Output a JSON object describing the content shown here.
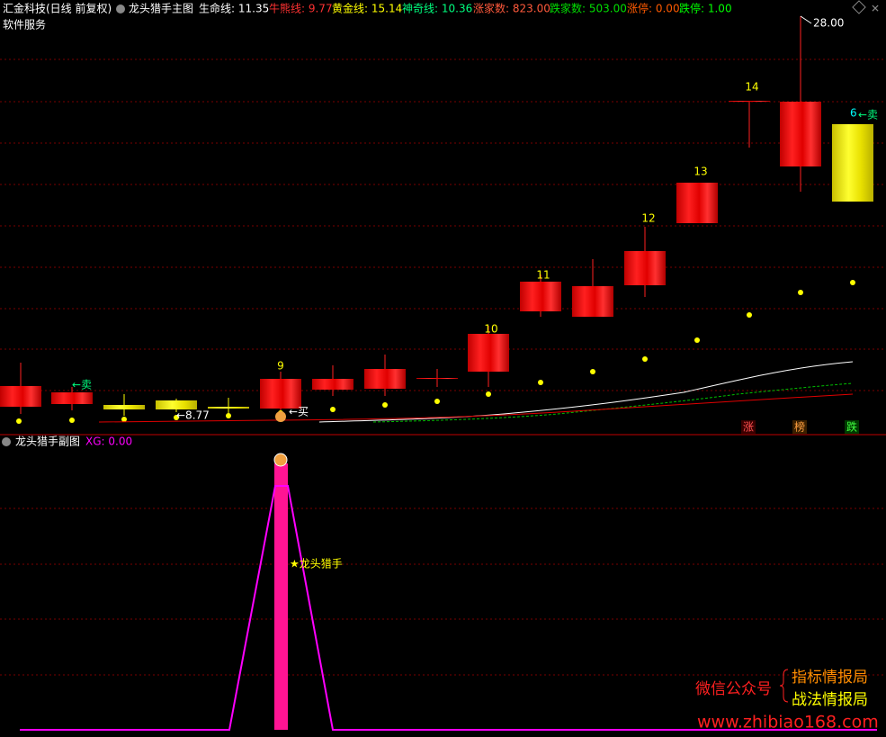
{
  "main_panel": {
    "header": {
      "title": "汇金科技(日线 前复权)",
      "indicator": "龙头猎手主图",
      "items": [
        "生命线: 11.35",
        "牛熊线: 9.77",
        "黄金线: 15.14",
        "神奇线: 10.36",
        "涨家数: 823.00",
        "跌家数: 503.00",
        "涨停: 0.00",
        "跌停: 1.00"
      ]
    },
    "subtitle": "软件服务",
    "annotations": {
      "sell_left": "←卖",
      "low_price": "←8.77",
      "buy": "←买",
      "high_price": "28.00",
      "sell_count": "6",
      "sell_right": "←卖"
    },
    "counts": [
      "9",
      "10",
      "11",
      "12",
      "13",
      "14"
    ],
    "tags": [
      "涨",
      "榜",
      "跌"
    ]
  },
  "sub_panel": {
    "title": "龙头猎手副图",
    "xg": "XG: 0.00",
    "label": "★龙头猎手"
  },
  "watermark": {
    "wechat": "微信公众号",
    "line1": "指标情报局",
    "line2": "战法情报局",
    "url": "www.zhibiao168.com"
  }
}
